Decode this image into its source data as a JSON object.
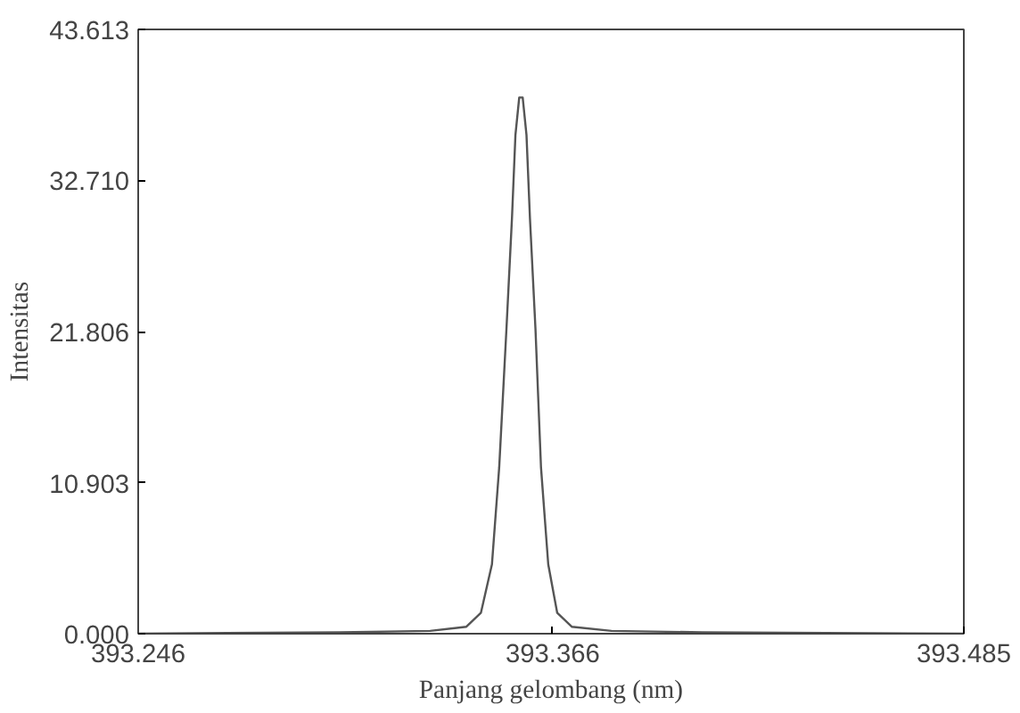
{
  "chart_data": {
    "type": "line",
    "xlabel": "Panjang gelombang (nm)",
    "ylabel": "Intensitas",
    "x": [
      393.246,
      393.3043,
      393.3305,
      393.341,
      393.3452,
      393.3484,
      393.3505,
      393.3526,
      393.3542,
      393.3552,
      393.3563,
      393.3573,
      393.3584,
      393.3594,
      393.361,
      393.3626,
      393.3647,
      393.3673,
      393.3715,
      393.383,
      393.4093,
      393.485
    ],
    "series": [
      {
        "color": "#555555",
        "values": [
          0,
          0.1,
          0.2,
          0.5,
          1.5,
          5,
          12,
          22,
          30,
          36,
          38.7,
          38.7,
          36,
          30,
          22,
          12,
          5,
          1.5,
          0.5,
          0.2,
          0.1,
          0
        ]
      }
    ],
    "xlim": [
      393.246,
      393.485
    ],
    "xticks": [
      393.246,
      393.366,
      393.485
    ],
    "ylim": [
      0,
      43.613
    ],
    "yticks": [
      {
        "value": 0,
        "label": "0.000"
      },
      {
        "value": 10.903,
        "label": "10.903"
      },
      {
        "value": 21.806,
        "label": "21.806"
      },
      {
        "value": 32.71,
        "label": "32.710"
      },
      {
        "value": 43.613,
        "label": "43.613"
      }
    ],
    "grid": false
  }
}
